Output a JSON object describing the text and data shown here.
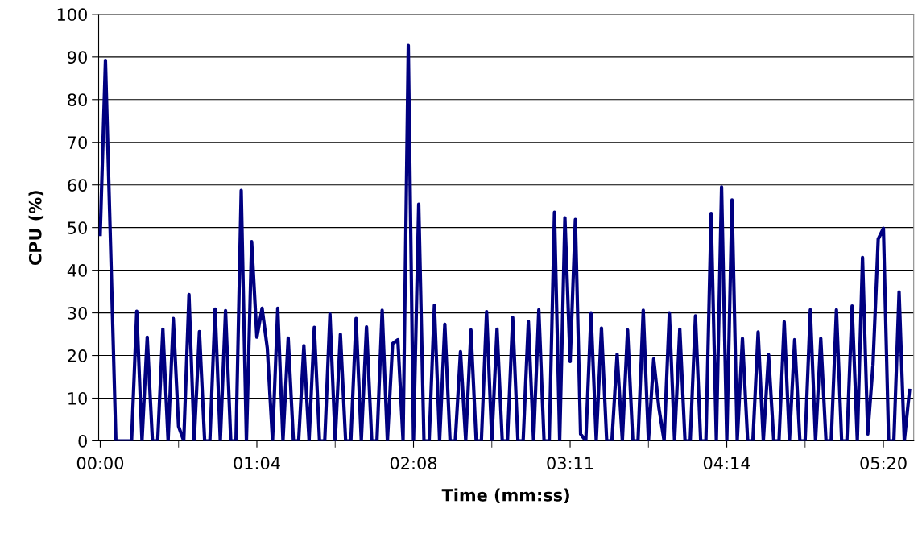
{
  "chart_data": {
    "type": "line",
    "xlabel": "Time (mm:ss)",
    "ylabel": "CPU (%)",
    "categories": [
      "00:00",
      null,
      null,
      null,
      null,
      null,
      null,
      null,
      null,
      null,
      null,
      null,
      null,
      null,
      null,
      null,
      null,
      null,
      null,
      null,
      null,
      null,
      null,
      null,
      null,
      null,
      null,
      null,
      null,
      null,
      "01:04",
      null,
      null,
      null,
      null,
      null,
      null,
      null,
      null,
      null,
      null,
      null,
      null,
      null,
      null,
      null,
      null,
      null,
      null,
      null,
      null,
      null,
      null,
      null,
      null,
      null,
      null,
      null,
      null,
      null,
      "02:08",
      null,
      null,
      null,
      null,
      null,
      null,
      null,
      null,
      null,
      null,
      null,
      null,
      null,
      null,
      null,
      null,
      null,
      null,
      null,
      null,
      null,
      null,
      null,
      null,
      null,
      null,
      null,
      null,
      null,
      "03:11",
      null,
      null,
      null,
      null,
      null,
      null,
      null,
      null,
      null,
      null,
      null,
      null,
      null,
      null,
      null,
      null,
      null,
      null,
      null,
      null,
      null,
      null,
      null,
      null,
      null,
      null,
      null,
      null,
      null,
      "04:14",
      null,
      null,
      null,
      null,
      null,
      null,
      null,
      null,
      null,
      null,
      null,
      null,
      null,
      null,
      null,
      null,
      null,
      null,
      null,
      null,
      null,
      null,
      null,
      null,
      null,
      null,
      null,
      null,
      null,
      "05:20",
      null,
      null,
      null,
      null,
      null
    ],
    "series": [
      {
        "color": "#000080",
        "values": [
          48.4,
          89.2,
          45,
          0,
          0,
          0,
          0,
          30.4,
          0,
          24.3,
          0,
          0,
          26.2,
          0,
          28.7,
          3.4,
          0,
          34.3,
          0,
          25.6,
          0,
          0,
          30.9,
          0,
          30.5,
          0,
          0,
          58.7,
          0,
          46.7,
          24.3,
          31.1,
          21.7,
          0,
          31.1,
          0,
          24.1,
          0,
          0,
          22.3,
          0,
          26.6,
          0,
          0,
          29.7,
          0,
          25,
          0,
          0,
          28.7,
          0,
          26.7,
          0,
          0,
          30.6,
          0,
          22.8,
          23.7,
          0,
          92.7,
          0,
          55.5,
          0,
          0,
          31.8,
          0,
          27.3,
          0,
          0,
          20.9,
          0,
          26,
          0,
          0,
          30.3,
          0,
          26.2,
          0,
          0,
          28.9,
          0,
          0,
          28,
          0,
          30.7,
          0,
          0,
          53.6,
          0,
          52.3,
          18.6,
          51.9,
          1.6,
          0,
          30,
          0,
          26.4,
          0,
          0,
          20.3,
          0,
          26,
          0,
          0,
          30.6,
          0,
          19.2,
          7.7,
          0,
          30,
          0,
          26.2,
          0,
          0,
          29.3,
          0,
          0,
          53.3,
          0,
          59.5,
          0,
          56.5,
          0,
          24,
          0,
          0,
          25.5,
          0,
          20.2,
          0,
          0,
          27.9,
          0,
          23.7,
          0,
          0,
          30.7,
          0,
          24,
          0,
          0,
          30.7,
          0,
          0,
          31.6,
          0,
          43,
          1.6,
          17.8,
          47.3,
          49.8,
          0,
          0,
          34.9,
          0,
          11.8
        ]
      }
    ],
    "ylim": [
      0,
      100
    ],
    "yticks": [
      0,
      10,
      20,
      30,
      40,
      50,
      60,
      70,
      80,
      90,
      100
    ],
    "grid": "y",
    "legend": false,
    "marker": "none",
    "line_style": "solid"
  }
}
